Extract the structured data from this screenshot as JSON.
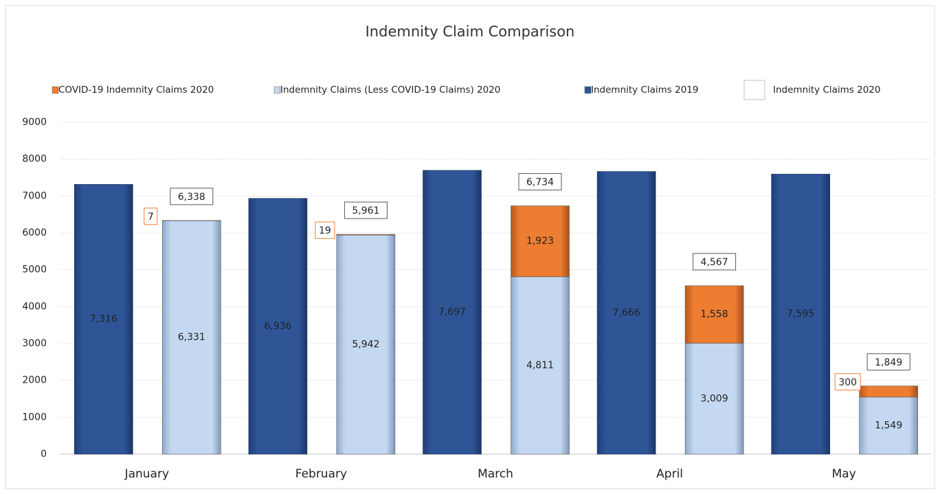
{
  "chart_data": {
    "type": "bar",
    "title": "Indemnity Claim Comparison",
    "categories": [
      "January",
      "February",
      "March",
      "April",
      "May"
    ],
    "series": [
      {
        "name": "COVID-19 Indemnity Claims 2020",
        "color": "#ed7d31",
        "stacked": true,
        "values": [
          7,
          19,
          1923,
          1558,
          300
        ],
        "value_labels": [
          "7",
          "19",
          "1,923",
          "1,558",
          "300"
        ]
      },
      {
        "name": "Indemnity Claims (Less COVID-19 Claims) 2020",
        "color": "#c5d8f1",
        "stacked": true,
        "values": [
          6331,
          5942,
          4811,
          3009,
          1549
        ],
        "value_labels": [
          "6,331",
          "5,942",
          "4,811",
          "3,009",
          "1,549"
        ]
      },
      {
        "name": "Indemnity Claims 2019",
        "color": "#2f5597",
        "values": [
          7316,
          6936,
          7697,
          7666,
          7595
        ],
        "value_labels": [
          "7,316",
          "6,936",
          "7,697",
          "7,666",
          "7,595"
        ]
      },
      {
        "name": "Indemnity Claims 2020",
        "color": "#ffffff",
        "labels_only": true,
        "values": [
          6338,
          5961,
          6734,
          4567,
          1849
        ],
        "value_labels": [
          "6,338",
          "5,961",
          "6,734",
          "4,567",
          "1,849"
        ]
      }
    ],
    "ylim": [
      0,
      9000
    ],
    "yticks": [
      0,
      1000,
      2000,
      3000,
      4000,
      5000,
      6000,
      7000,
      8000,
      9000
    ],
    "grid": true,
    "legend": "top"
  }
}
